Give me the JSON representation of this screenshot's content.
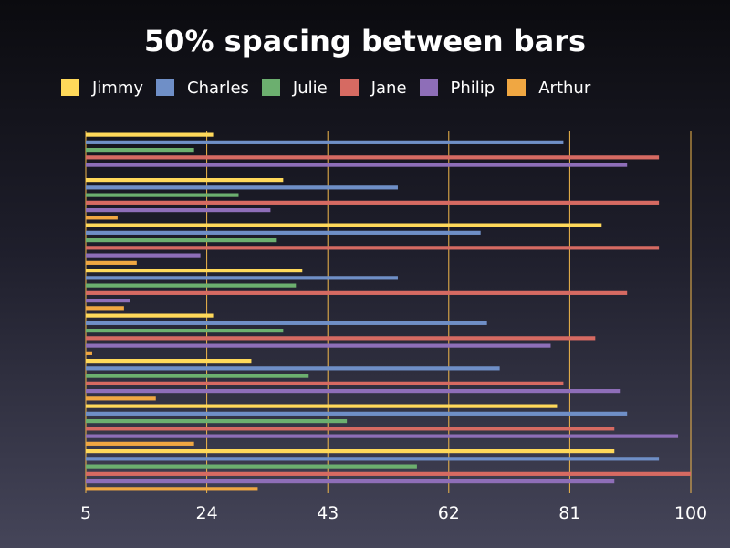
{
  "title": "50% spacing between bars",
  "chart_data": {
    "type": "bar",
    "orientation": "horizontal",
    "title": "50% spacing between bars",
    "xlim": [
      5,
      100
    ],
    "xticks": [
      5,
      24,
      43,
      62,
      81,
      100
    ],
    "grid": "vertical",
    "legend_placement": "top",
    "groups": 8,
    "series": [
      {
        "name": "Jimmy",
        "color": "#FFD95A",
        "values": [
          25,
          36,
          86,
          39,
          25,
          31,
          79,
          88
        ]
      },
      {
        "name": "Charles",
        "color": "#6F8FC7",
        "values": [
          80,
          54,
          67,
          54,
          68,
          70,
          90,
          95
        ]
      },
      {
        "name": "Julie",
        "color": "#6CAF6F",
        "values": [
          22,
          29,
          35,
          38,
          36,
          40,
          46,
          57
        ]
      },
      {
        "name": "Jane",
        "color": "#D66A62",
        "values": [
          95,
          95,
          95,
          90,
          85,
          80,
          88,
          100
        ]
      },
      {
        "name": "Philip",
        "color": "#8E6EB8",
        "values": [
          90,
          34,
          23,
          12,
          78,
          89,
          98,
          88
        ]
      },
      {
        "name": "Arthur",
        "color": "#F0A742",
        "values": [
          null,
          10,
          13,
          11,
          6,
          16,
          22,
          32
        ]
      }
    ]
  },
  "colors": {
    "gridline": "#F2B84B",
    "tick_text": "#ffffff",
    "title": "#ffffff"
  }
}
